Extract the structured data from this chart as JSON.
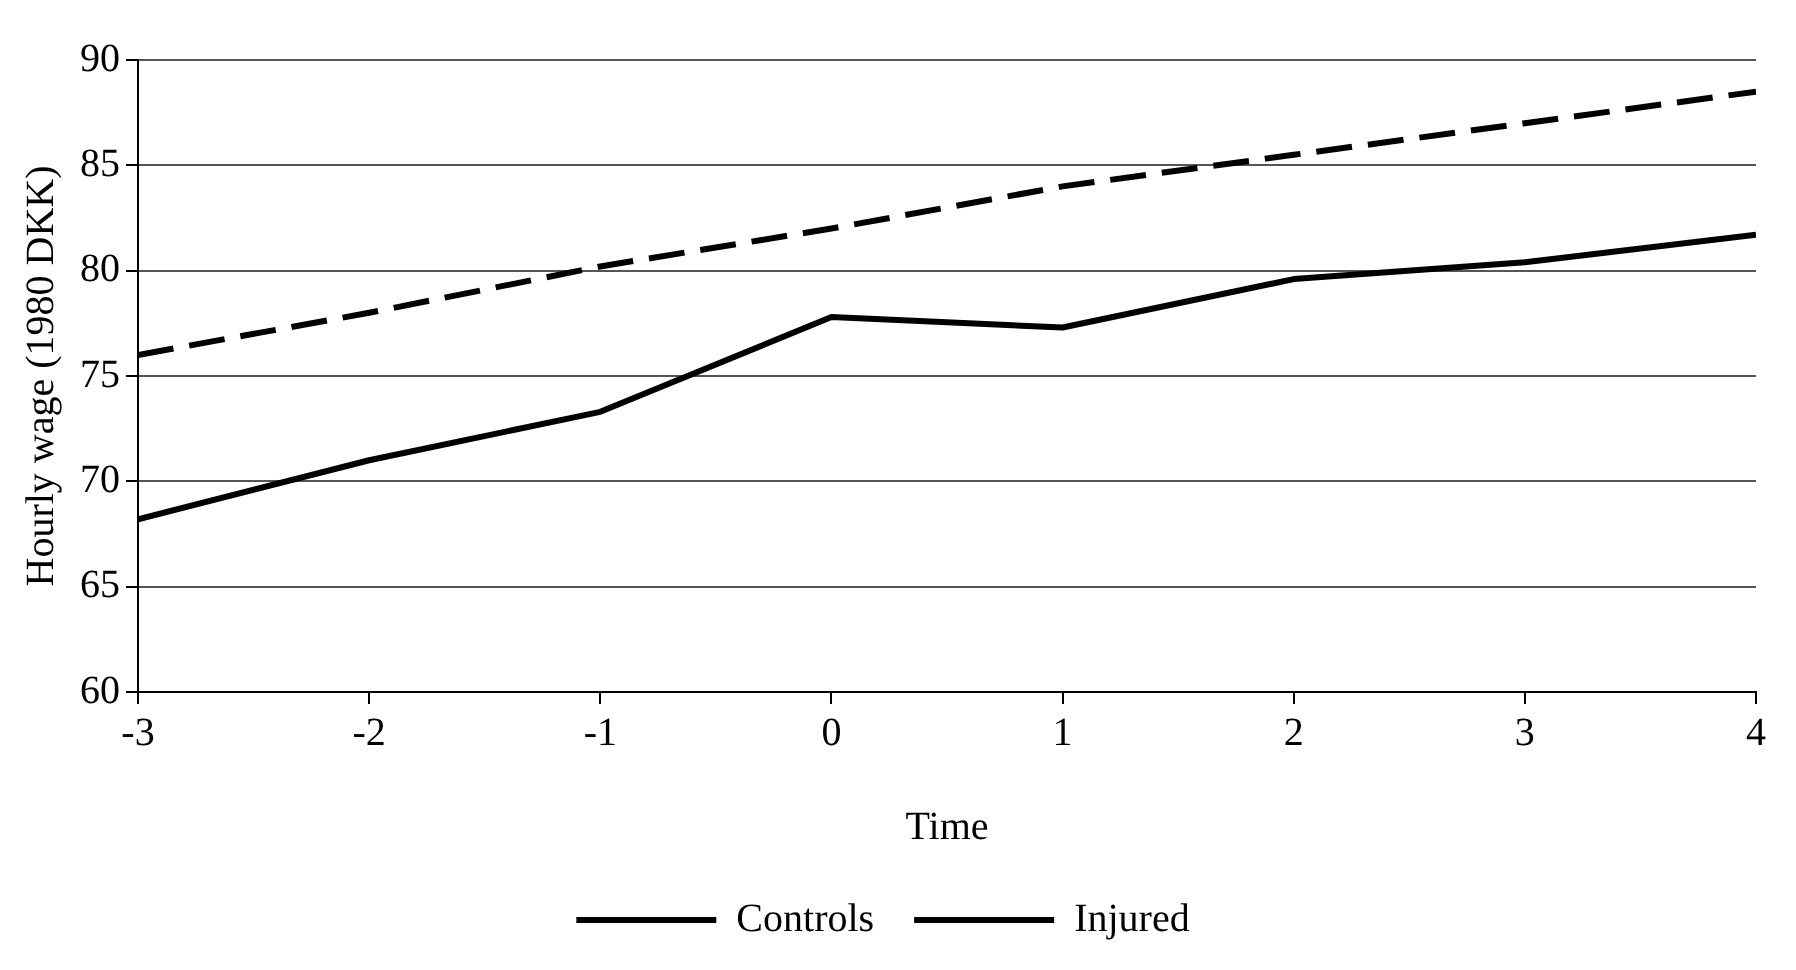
{
  "chart_data": {
    "type": "line",
    "xlabel": "Time",
    "ylabel": "Hourly wage (1980 DKK)",
    "x": [
      -3,
      -2,
      -1,
      0,
      1,
      2,
      3,
      4
    ],
    "xlim": [
      -3,
      4
    ],
    "xticks": [
      -3,
      -2,
      -1,
      0,
      1,
      2,
      3,
      4
    ],
    "ylim": [
      60,
      90
    ],
    "yticks": [
      60,
      65,
      70,
      75,
      80,
      85,
      90
    ],
    "grid": "y",
    "legend": "bottom",
    "marker": "none",
    "series": [
      {
        "name": "Controls",
        "color": "#000000",
        "line_style": "dashed",
        "values": [
          76,
          78,
          80.2,
          82,
          84,
          85.5,
          87,
          88.5
        ]
      },
      {
        "name": "Injured",
        "color": "#000000",
        "line_style": "solid",
        "values": [
          68.2,
          71,
          73.3,
          77.8,
          77.3,
          79.6,
          80.4,
          81.7
        ]
      }
    ]
  }
}
